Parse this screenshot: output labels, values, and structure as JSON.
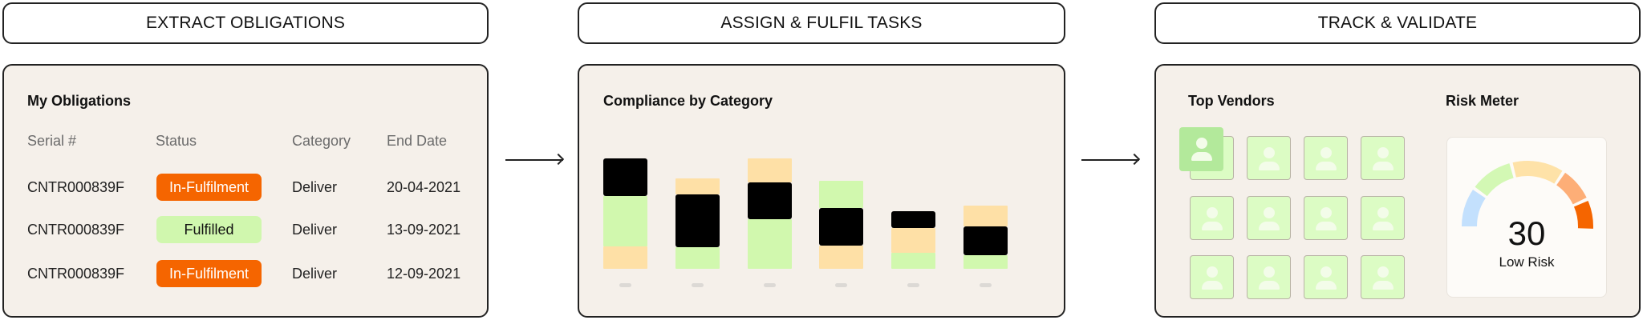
{
  "steps": [
    {
      "label": "EXTRACT OBLIGATIONS",
      "color": "#c3e0fd"
    },
    {
      "label": "ASSIGN & FULFIL TASKS",
      "color": "#fee2a8"
    },
    {
      "label": "TRACK & VALIDATE",
      "color": "#b2eb9c"
    }
  ],
  "obligations": {
    "title": "My Obligations",
    "columns": [
      "Serial #",
      "Status",
      "Category",
      "End Date"
    ],
    "rows": [
      {
        "serial": "CNTR000839F",
        "status": "In-Fulfilment",
        "category": "Deliver",
        "end_date": "20-04-2021"
      },
      {
        "serial": "CNTR000839F",
        "status": "Fulfilled",
        "category": "Deliver",
        "end_date": "13-09-2021"
      },
      {
        "serial": "CNTR000839F",
        "status": "In-Fulfilment",
        "category": "Deliver",
        "end_date": "12-09-2021"
      }
    ],
    "status_colors": {
      "In-Fulfilment": {
        "bg": "#f56500",
        "fg": "#ffffff"
      },
      "Fulfilled": {
        "bg": "#d0f7ae",
        "fg": "#111111"
      }
    }
  },
  "compliance": {
    "title": "Compliance by Category",
    "chart_data": {
      "type": "bar",
      "stacked": true,
      "colors": {
        "black": "#000000",
        "green": "#d1f8ae",
        "orange": "#fee0a6"
      },
      "bars": [
        [
          {
            "c": "orange",
            "v": 28
          },
          {
            "c": "green",
            "v": 63
          },
          {
            "c": "black",
            "v": 47
          }
        ],
        [
          {
            "c": "green",
            "v": 27
          },
          {
            "c": "black",
            "v": 66
          },
          {
            "c": "orange",
            "v": 20
          }
        ],
        [
          {
            "c": "green",
            "v": 62
          },
          {
            "c": "black",
            "v": 46
          },
          {
            "c": "orange",
            "v": 30
          }
        ],
        [
          {
            "c": "orange",
            "v": 29
          },
          {
            "c": "black",
            "v": 47
          },
          {
            "c": "green",
            "v": 34
          }
        ],
        [
          {
            "c": "green",
            "v": 20
          },
          {
            "c": "orange",
            "v": 31
          },
          {
            "c": "black",
            "v": 21
          }
        ],
        [
          {
            "c": "green",
            "v": 17
          },
          {
            "c": "black",
            "v": 36
          },
          {
            "c": "orange",
            "v": 26
          }
        ]
      ]
    }
  },
  "vendors": {
    "title": "Top Vendors",
    "count": 12,
    "tile_color": "#dcfcc4",
    "highlight_color": "#b3e99b"
  },
  "risk": {
    "title": "Risk Meter",
    "value": "30",
    "label": "Low Risk",
    "segment_colors": [
      "#c3e0fd",
      "#d3f8b4",
      "#fee2a8",
      "#fdae77",
      "#f56500"
    ]
  }
}
